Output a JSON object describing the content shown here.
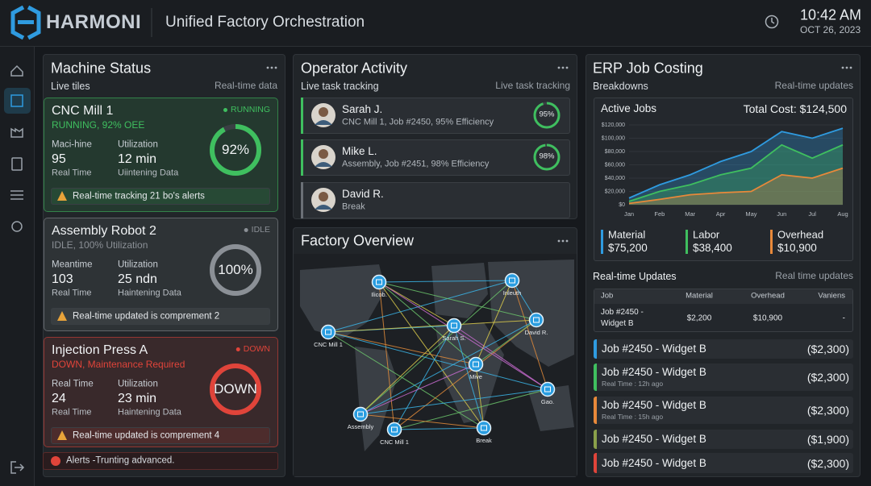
{
  "header": {
    "brand": "HARMONI",
    "title": "Unified Factory Orchestration",
    "time": "10:42 AM",
    "date": "OCT 26, 2023"
  },
  "machine_status": {
    "title": "Machine Status",
    "subtitle": "Live tiles",
    "note": "Real-time data",
    "machines": [
      {
        "name": "CNC Mill 1",
        "badge": "RUNNING",
        "status": "RUNNING, 92% OEE",
        "color": "#3fbf5f",
        "metrics": [
          {
            "label": "Maci-hine",
            "value": "95",
            "caption": "Real Time"
          },
          {
            "label": "Utilization",
            "value": "12 min",
            "caption": "Uiintening Data"
          }
        ],
        "gauge": 92,
        "gauge_label": "92%",
        "alert": "Real-time tracking 21 bo's alerts"
      },
      {
        "name": "Assembly Robot 2",
        "badge": "IDLE",
        "status": "IDLE, 100% Utilization",
        "color": "#8b9096",
        "metrics": [
          {
            "label": "Meantime",
            "value": "103",
            "caption": "Real Time"
          },
          {
            "label": "Utilization",
            "value": "25 ndn",
            "caption": "Haintening Data"
          }
        ],
        "gauge": 100,
        "gauge_label": "100%",
        "alert": "Real-time updated is comprement 2"
      },
      {
        "name": "Injection Press A",
        "badge": "DOWN",
        "status": "DOWN, Maintenance Required",
        "color": "#e0443a",
        "metrics": [
          {
            "label": "Real Time",
            "value": "24",
            "caption": "Real Time"
          },
          {
            "label": "Utilization",
            "value": "23 min",
            "caption": "Haintening Data"
          }
        ],
        "gauge_label": "DOWN",
        "alert": "Real-time updated is comprement 4"
      }
    ],
    "footer_alert": "Alerts -Trunting advanced."
  },
  "operator_activity": {
    "title": "Operator Activity",
    "subtitle": "Live task tracking",
    "note": "Live task tracking",
    "operators": [
      {
        "name": "Sarah J.",
        "detail": "CNC Mill 1, Job #2450, 95% Efficiency",
        "color": "#3fbf5f",
        "gauge": 95,
        "gauge_label": "95%"
      },
      {
        "name": "Mike L.",
        "detail": "Assembly, Job #2451, 98% Efficiency",
        "color": "#3fbf5f",
        "gauge": 98,
        "gauge_label": "98%"
      },
      {
        "name": "David R.",
        "detail": "Break",
        "color": "#6b7076"
      }
    ]
  },
  "factory_overview": {
    "title": "Factory Overview",
    "nodes": [
      "Ilicob.",
      "Inleuth",
      "Sarah S.",
      "David R.",
      "CNC Mill 1",
      "Mive",
      "Gao.",
      "Assembly",
      "CNC Mill 1",
      "Break"
    ]
  },
  "erp": {
    "title": "ERP Job Costing",
    "subtitle": "Breakdowns",
    "note": "Real-time updates",
    "chart": {
      "type": "area",
      "title": "Active Jobs",
      "total": "Total Cost: $124,500",
      "categories": [
        "Jan",
        "Feb",
        "Mar",
        "Apr",
        "May",
        "Jun",
        "Jul",
        "Aug"
      ],
      "ylim": [
        0,
        120000
      ],
      "yticks": [
        {
          "value": 0,
          "label": "$0"
        },
        {
          "value": 20000,
          "label": "$20,000"
        },
        {
          "value": 40000,
          "label": "$40,000"
        },
        {
          "value": 60000,
          "label": "$60,000"
        },
        {
          "value": 80000,
          "label": "$80,000"
        },
        {
          "value": 100000,
          "label": "$100,000"
        },
        {
          "value": 120000,
          "label": "$120,000"
        }
      ],
      "series": [
        {
          "name": "Material",
          "total": "$75,200",
          "color": "#2f9be0",
          "values": [
            10000,
            30000,
            45000,
            65000,
            80000,
            110000,
            100000,
            115000
          ]
        },
        {
          "name": "Labor",
          "total": "$38,400",
          "color": "#3fbf5f",
          "values": [
            5000,
            20000,
            30000,
            45000,
            55000,
            90000,
            70000,
            90000
          ]
        },
        {
          "name": "Overhead",
          "total": "$10,900",
          "color": "#e8893a",
          "values": [
            2000,
            8000,
            15000,
            18000,
            20000,
            45000,
            40000,
            55000
          ]
        }
      ]
    },
    "updates": {
      "title": "Real-time Updates",
      "note": "Real time updates",
      "table": {
        "header": [
          "Job",
          "Material",
          "Overhead",
          "Vaniens"
        ],
        "rows": [
          [
            "Job #2450 - Widget B",
            "$2,200",
            "$10,900",
            "-"
          ]
        ]
      },
      "jobs": [
        {
          "name": "Job #2450 - Widget B",
          "amount": "($2,300)",
          "color": "#2f9be0"
        },
        {
          "name": "Job #2450 - Widget B",
          "amount": "($2,300)",
          "time": "Real Time : 12h ago",
          "color": "#3fbf5f"
        },
        {
          "name": "Job #2450 - Widget B",
          "amount": "($2,300)",
          "time": "Real Time : 15h ago",
          "color": "#e8893a"
        },
        {
          "name": "Job #2450 - Widget B",
          "amount": "($1,900)",
          "color": "#8aa04a"
        },
        {
          "name": "Job #2450 - Widget B",
          "amount": "($2,300)",
          "color": "#e0443a"
        }
      ]
    }
  }
}
